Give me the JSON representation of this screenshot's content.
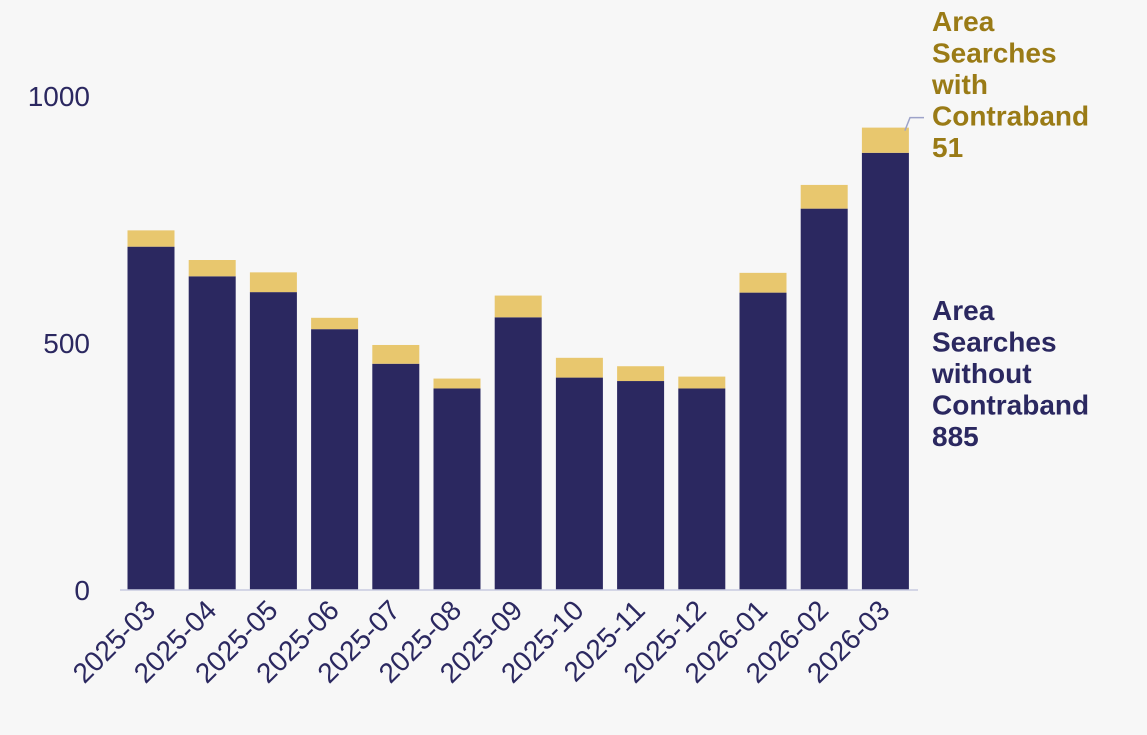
{
  "chart_data": {
    "type": "bar",
    "stacked": true,
    "categories": [
      "2025-03",
      "2025-04",
      "2025-05",
      "2025-06",
      "2025-07",
      "2025-08",
      "2025-09",
      "2025-10",
      "2025-11",
      "2025-12",
      "2026-01",
      "2026-02",
      "2026-03"
    ],
    "series": [
      {
        "name": "Area Searches without Contraband",
        "color": "#2b2860",
        "values": [
          695,
          635,
          603,
          528,
          458,
          408,
          552,
          430,
          423,
          408,
          602,
          772,
          885
        ],
        "end_label": [
          "Area",
          "Searches",
          "without",
          "Contraband",
          "885"
        ]
      },
      {
        "name": "Area Searches with Contraband",
        "color": "#e8c76e",
        "values": [
          33,
          33,
          40,
          23,
          38,
          20,
          44,
          40,
          30,
          24,
          40,
          48,
          51
        ],
        "end_label": [
          "Area",
          "Searches",
          "with",
          "Contraband",
          "51"
        ]
      }
    ],
    "y_ticks": [
      "0",
      "500",
      "1000"
    ],
    "ylim": [
      0,
      1000
    ],
    "grid": false,
    "legend": "direct labels right of last bar",
    "label_colors": {
      "without": "#2b2860",
      "with": "#9a7b16",
      "axis": "#2b2860",
      "leader": "#9da3c9",
      "baseline": "#c8cbe0"
    }
  }
}
